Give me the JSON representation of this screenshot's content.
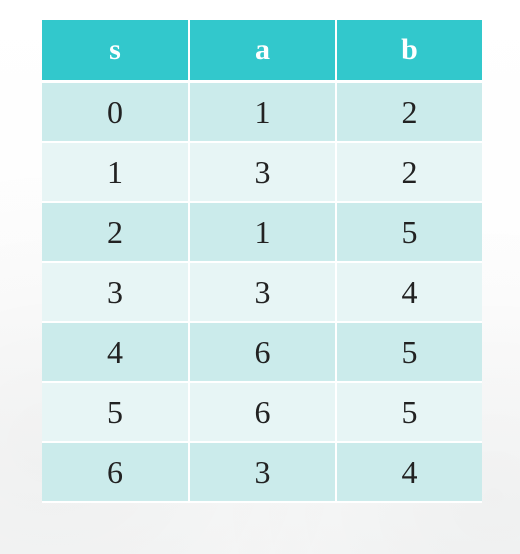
{
  "table": {
    "headers": [
      "s",
      "a",
      "b"
    ],
    "rows": [
      [
        "0",
        "1",
        "2"
      ],
      [
        "1",
        "3",
        "2"
      ],
      [
        "2",
        "1",
        "5"
      ],
      [
        "3",
        "3",
        "4"
      ],
      [
        "4",
        "6",
        "5"
      ],
      [
        "5",
        "6",
        "5"
      ],
      [
        "6",
        "3",
        "4"
      ]
    ]
  },
  "colors": {
    "header_bg": "#32c8cc",
    "row_odd_bg": "#cbebeb",
    "row_even_bg": "#e7f5f5",
    "text": "#222222"
  }
}
